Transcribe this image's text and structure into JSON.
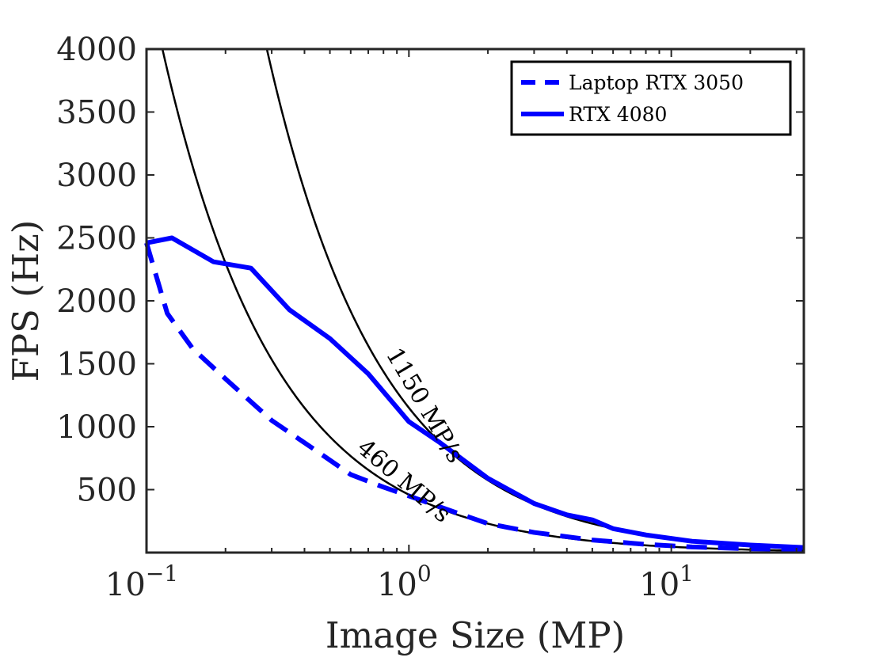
{
  "chart_data": {
    "type": "line",
    "xlabel": "Image Size (MP)",
    "ylabel": "FPS (Hz)",
    "xscale": "log",
    "xlim": [
      0.1,
      32
    ],
    "ylim": [
      0,
      4000
    ],
    "grid": false,
    "legend_position": "top-right",
    "x_ticks": [
      {
        "value": 0.1,
        "base": "10",
        "exp": "−1"
      },
      {
        "value": 1,
        "base": "10",
        "exp": "0"
      },
      {
        "value": 10,
        "base": "10",
        "exp": "1"
      }
    ],
    "y_ticks": [
      {
        "value": 500,
        "label": "500"
      },
      {
        "value": 1000,
        "label": "1000"
      },
      {
        "value": 1500,
        "label": "1500"
      },
      {
        "value": 2000,
        "label": "2000"
      },
      {
        "value": 2500,
        "label": "2500"
      },
      {
        "value": 3000,
        "label": "3000"
      },
      {
        "value": 3500,
        "label": "3500"
      },
      {
        "value": 4000,
        "label": "4000"
      }
    ],
    "series": [
      {
        "name": "Laptop RTX 3050",
        "color": "#0000ff",
        "style": "dashed",
        "x": [
          0.1,
          0.12,
          0.15,
          0.2,
          0.3,
          0.45,
          0.6,
          0.8,
          1.0,
          1.5,
          2.0,
          3.0,
          5.0,
          8.0,
          12.0,
          20.0,
          32.0
        ],
        "y": [
          2460,
          1900,
          1620,
          1380,
          1050,
          800,
          620,
          520,
          450,
          320,
          230,
          160,
          100,
          65,
          45,
          30,
          25
        ]
      },
      {
        "name": "RTX 4080",
        "color": "#0000ff",
        "style": "solid",
        "x": [
          0.1,
          0.125,
          0.18,
          0.25,
          0.35,
          0.5,
          0.7,
          1.0,
          1.3,
          2.0,
          3.0,
          4.0,
          5.0,
          6.0,
          8.0,
          12.0,
          20.0,
          32.0
        ],
        "y": [
          2460,
          2500,
          2310,
          2260,
          1930,
          1700,
          1420,
          1040,
          880,
          590,
          390,
          300,
          260,
          190,
          140,
          90,
          60,
          40
        ]
      }
    ],
    "reference_curves": [
      {
        "label": "460 MP/s",
        "rate": 460,
        "color": "#000000"
      },
      {
        "label": "1150 MP/s",
        "rate": 1150,
        "color": "#000000"
      }
    ]
  }
}
